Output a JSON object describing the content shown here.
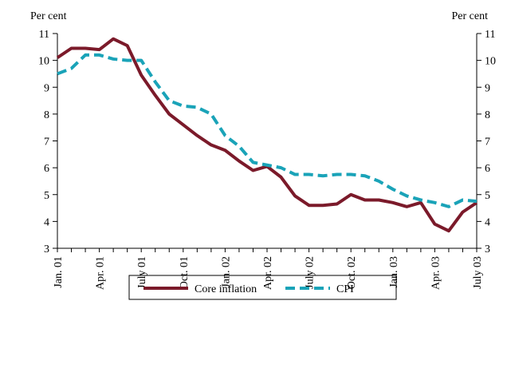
{
  "chart_data": {
    "type": "line",
    "y_label": "Per cent",
    "y2_label": "Per cent",
    "categories": [
      "Jan. 01",
      null,
      null,
      "Apr. 01",
      null,
      null,
      "July 01",
      null,
      null,
      "Oct. 01",
      null,
      null,
      "Jan. 02",
      null,
      null,
      "Apr. 02",
      null,
      null,
      "July 02",
      null,
      null,
      "Oct. 02",
      null,
      null,
      "Jan. 03",
      null,
      null,
      "Apr. 03",
      null,
      null,
      "July 03"
    ],
    "series": [
      {
        "name": "Core inflation",
        "color": "#7b1a2a",
        "dash": false,
        "values": [
          10.1,
          10.45,
          10.45,
          10.4,
          10.8,
          10.55,
          9.45,
          8.7,
          8.0,
          7.6,
          7.2,
          6.85,
          6.65,
          6.25,
          5.9,
          6.05,
          5.65,
          4.95,
          4.6,
          4.6,
          4.65,
          5.0,
          4.8,
          4.8,
          4.7,
          4.55,
          4.7,
          3.9,
          3.65,
          4.35,
          4.7
        ]
      },
      {
        "name": "CPI",
        "color": "#1aa3b8",
        "dash": true,
        "values": [
          9.5,
          9.7,
          10.2,
          10.2,
          10.05,
          10.0,
          10.0,
          9.2,
          8.5,
          8.3,
          8.25,
          8.0,
          7.2,
          6.8,
          6.2,
          6.1,
          6.0,
          5.75,
          5.75,
          5.7,
          5.75,
          5.75,
          5.7,
          5.5,
          5.2,
          4.95,
          4.8,
          4.7,
          4.55,
          4.8,
          4.75
        ]
      }
    ],
    "ylim": [
      3,
      11
    ],
    "yticks": [
      3,
      4,
      5,
      6,
      7,
      8,
      9,
      10,
      11
    ],
    "y2lim": [
      3,
      11
    ],
    "y2ticks": [
      3,
      4,
      5,
      6,
      7,
      8,
      9,
      10,
      11
    ],
    "legend": "bottom"
  }
}
